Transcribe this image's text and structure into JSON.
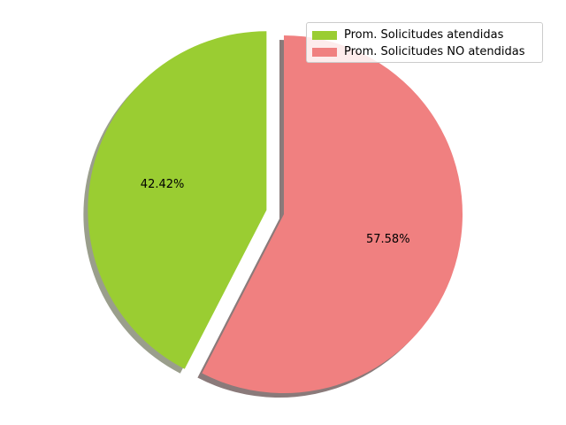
{
  "chart_data": {
    "type": "pie",
    "categories": [
      "Prom. Solicitudes atendidas",
      "Prom. Solicitudes NO atendidas"
    ],
    "values": [
      42.42,
      57.58
    ],
    "labels": [
      "42.42%",
      "57.58%"
    ],
    "colors": [
      "#9acd32",
      "#f08080"
    ],
    "explode": [
      0.1,
      0
    ],
    "shadow": true,
    "start_angle_deg": 90,
    "legend_position": "upper right",
    "title": ""
  },
  "legend": {
    "items": [
      {
        "label": "Prom. Solicitudes atendidas",
        "color": "#9acd32"
      },
      {
        "label": "Prom. Solicitudes NO atendidas",
        "color": "#f08080"
      }
    ]
  }
}
